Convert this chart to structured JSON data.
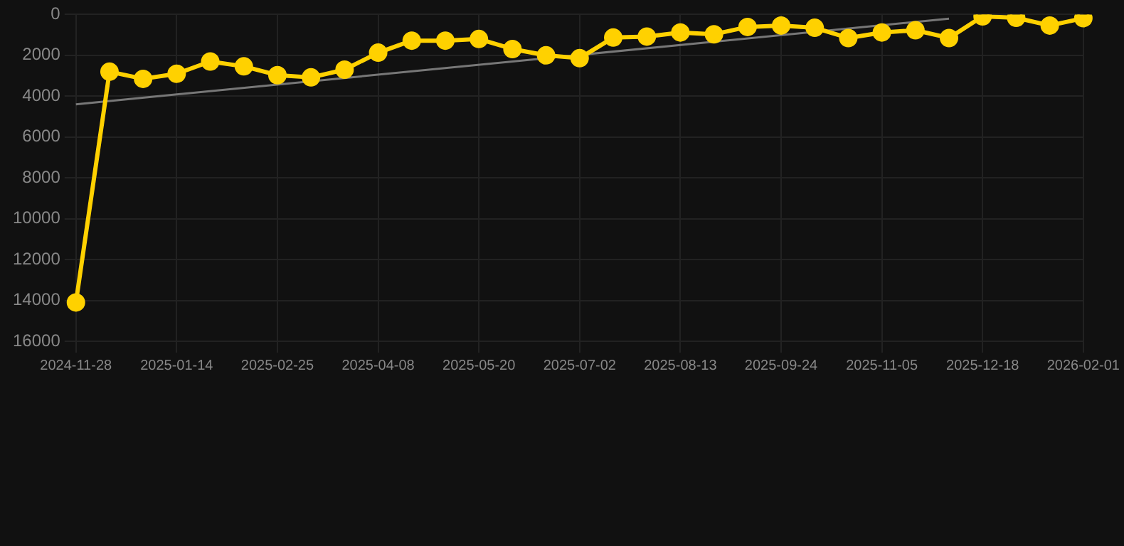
{
  "chart_data": {
    "type": "line",
    "categories": [
      "2024-11-28",
      null,
      null,
      "2025-01-14",
      null,
      null,
      "2025-02-25",
      null,
      null,
      "2025-04-08",
      null,
      null,
      "2025-05-20",
      null,
      null,
      "2025-07-02",
      null,
      null,
      "2025-08-13",
      null,
      null,
      "2025-09-24",
      null,
      null,
      "2025-11-05",
      null,
      null,
      "2025-12-18",
      null,
      null,
      "2026-02-01"
    ],
    "series": [
      {
        "color": "#ffd100",
        "marker": "circle",
        "values": [
          14100,
          2800,
          3150,
          2900,
          2300,
          2540,
          2970,
          3080,
          2700,
          1870,
          1280,
          1280,
          1200,
          1690,
          2000,
          2140,
          1130,
          1080,
          880,
          970,
          610,
          540,
          650,
          1150,
          880,
          770,
          1150,
          90,
          160,
          540,
          180
        ]
      },
      {
        "color": "#777777",
        "marker": "none",
        "values": [
          4400,
          null,
          null,
          null,
          null,
          null,
          null,
          null,
          null,
          null,
          null,
          null,
          null,
          null,
          null,
          null,
          null,
          null,
          null,
          null,
          null,
          null,
          null,
          null,
          null,
          null,
          200,
          null,
          null,
          null,
          null
        ]
      }
    ],
    "ylim": [
      16000,
      0
    ],
    "yticks": [
      0,
      2000,
      4000,
      6000,
      8000,
      10000,
      12000,
      14000,
      16000
    ],
    "grid": true,
    "legend": false
  }
}
